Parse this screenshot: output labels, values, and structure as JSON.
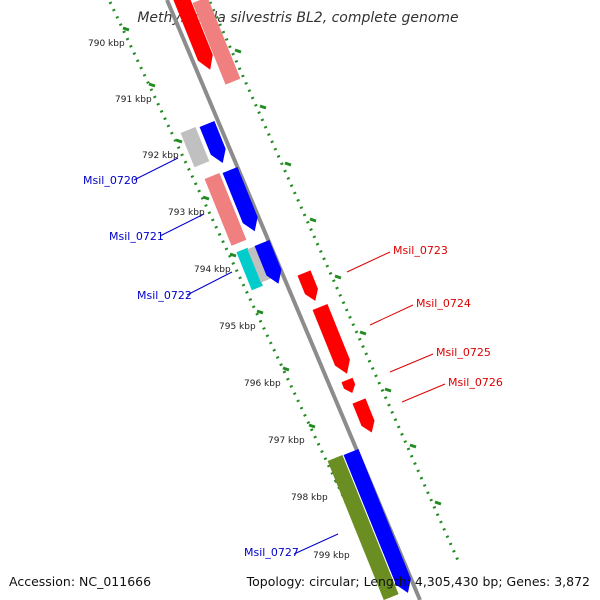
{
  "title": "Methylocella silvestris BL2, complete genome",
  "footer": {
    "accession": "Accession: NC_011666",
    "summary": "Topology: circular; Length: 4,305,430 bp; Genes: 3,872"
  },
  "colors": {
    "tick_dots": "#228B22",
    "backbone": "#8c8c8c",
    "forward_label": "#0000cc",
    "reverse_label": "#dd0000"
  },
  "ticks": [
    {
      "label": "790 kbp"
    },
    {
      "label": "791 kbp"
    },
    {
      "label": "792 kbp"
    },
    {
      "label": "793 kbp"
    },
    {
      "label": "794 kbp"
    },
    {
      "label": "795 kbp"
    },
    {
      "label": "796 kbp"
    },
    {
      "label": "797 kbp"
    },
    {
      "label": "798 kbp"
    },
    {
      "label": "799 kbp"
    }
  ],
  "gene_labels": [
    {
      "name": "Msil_0720",
      "color": "#0000cc"
    },
    {
      "name": "Msil_0721",
      "color": "#0000cc"
    },
    {
      "name": "Msil_0722",
      "color": "#0000cc"
    },
    {
      "name": "Msil_0723",
      "color": "#dd0000"
    },
    {
      "name": "Msil_0724",
      "color": "#dd0000"
    },
    {
      "name": "Msil_0725",
      "color": "#dd0000"
    },
    {
      "name": "Msil_0726",
      "color": "#dd0000"
    },
    {
      "name": "Msil_0727",
      "color": "#0000cc"
    }
  ]
}
